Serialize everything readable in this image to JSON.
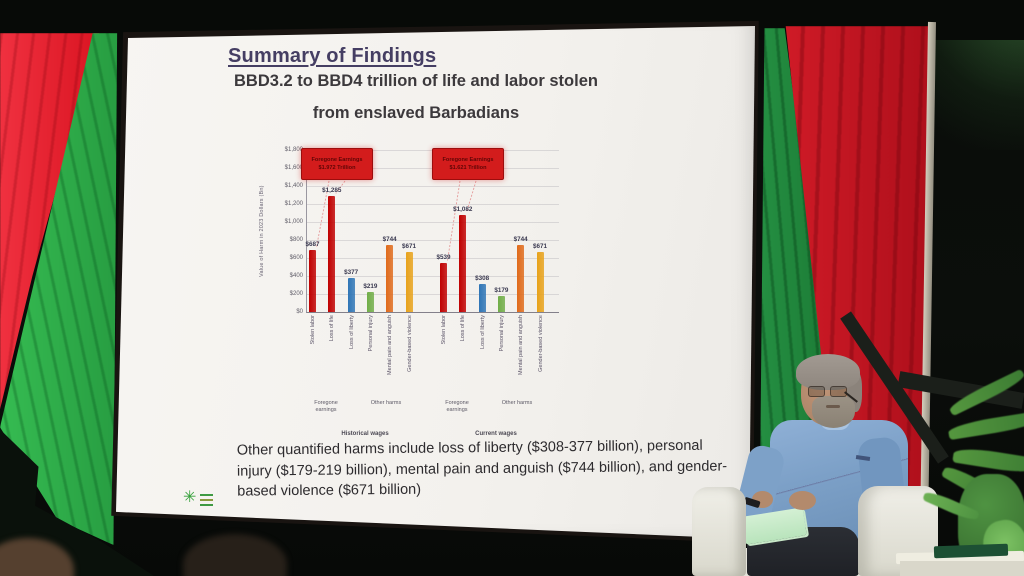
{
  "scene": {
    "setting_colors": {
      "curtain_left_red": "#e51e2e",
      "curtain_green_left": "#2fae4a",
      "curtain_green_right": "#1f8038",
      "curtain_right_red": "#c6141f",
      "stage_background": "#0a0d0a",
      "pole": "#c9c3b3",
      "armchair": "#e9e8e0",
      "speaker_shirt": "#7da1c8",
      "plant": "#4f9342"
    }
  },
  "slide": {
    "title": "Summary of Findings",
    "subtitle_line1": "BBD3.2 to BBD4 trillion of life and labor stolen",
    "subtitle_line2": "from enslaved Barbadians",
    "harms_note": {
      "line1": "Other quantified harms include loss of liberty ($308-377 billion), personal",
      "line2": "injury ($179-219 billion), mental pain and anguish ($744 billion), and gender-",
      "line3": "based violence ($671 billion)"
    },
    "logo_icon": "sunburst-logo",
    "chart_data": {
      "type": "bar",
      "title": "",
      "xlabel": "",
      "ylabel": "Value of Harm in 2023 Dollars (Bn)",
      "ylim": [
        0,
        1800
      ],
      "ytick_step": 200,
      "yticks": [
        "$1,800",
        "$1,600",
        "$1,400",
        "$1,200",
        "$1,000",
        "$800",
        "$600",
        "$400",
        "$200",
        "$0"
      ],
      "gridlines": true,
      "categories": [
        "Stolen labor",
        "Loss of life",
        "Loss of liberty",
        "Personal injury",
        "Mental pain and anguish",
        "Gender-based violence"
      ],
      "bar_colors": [
        "#c00000",
        "#c00000",
        "#2e75b6",
        "#70ad47",
        "#e06a1a",
        "#e8a21a"
      ],
      "subgroup_labels": [
        {
          "label": "Foregone earnings",
          "span": 2
        },
        {
          "label": "Other harms",
          "span": 4
        }
      ],
      "annotation_bg": "#d31c1c",
      "groups": [
        {
          "label": "Historical wages",
          "annotation_line1": "Foregone Earnings",
          "annotation_line2": "$1.972 Trillion",
          "values": [
            687,
            1285,
            377,
            219,
            744,
            671
          ],
          "value_labels": [
            "$687",
            "$1,285",
            "$377",
            "$219",
            "$744",
            "$671"
          ]
        },
        {
          "label": "Current wages",
          "annotation_line1": "Foregone Earnings",
          "annotation_line2": "$1.621 Trillion",
          "values": [
            539,
            1082,
            308,
            179,
            744,
            671
          ],
          "value_labels": [
            "$539",
            "$1,082",
            "$308",
            "$179",
            "$744",
            "$671"
          ]
        }
      ]
    }
  }
}
